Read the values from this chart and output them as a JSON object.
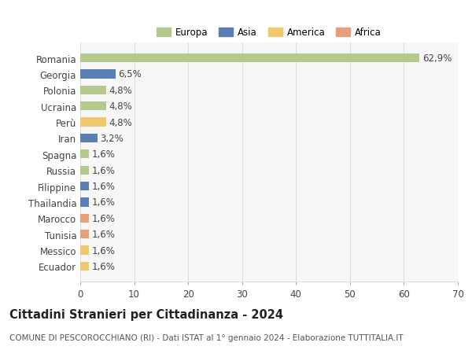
{
  "categories": [
    "Romania",
    "Georgia",
    "Polonia",
    "Ucraina",
    "Perù",
    "Iran",
    "Spagna",
    "Russia",
    "Filippine",
    "Thailandia",
    "Marocco",
    "Tunisia",
    "Messico",
    "Ecuador"
  ],
  "values": [
    62.9,
    6.5,
    4.8,
    4.8,
    4.8,
    3.2,
    1.6,
    1.6,
    1.6,
    1.6,
    1.6,
    1.6,
    1.6,
    1.6
  ],
  "labels": [
    "62,9%",
    "6,5%",
    "4,8%",
    "4,8%",
    "4,8%",
    "3,2%",
    "1,6%",
    "1,6%",
    "1,6%",
    "1,6%",
    "1,6%",
    "1,6%",
    "1,6%",
    "1,6%"
  ],
  "colors": [
    "#b5c98e",
    "#5b7eb5",
    "#b5c98e",
    "#b5c98e",
    "#f0c96e",
    "#5b7eb5",
    "#b5c98e",
    "#b5c98e",
    "#5b7eb5",
    "#5b7eb5",
    "#e8a07a",
    "#e8a07a",
    "#f0c96e",
    "#f0c96e"
  ],
  "legend_labels": [
    "Europa",
    "Asia",
    "America",
    "Africa"
  ],
  "legend_colors": [
    "#b5c98e",
    "#5b7eb5",
    "#f0c96e",
    "#e8a07a"
  ],
  "xlim": [
    0,
    70
  ],
  "xticks": [
    0,
    10,
    20,
    30,
    40,
    50,
    60,
    70
  ],
  "title": "Cittadini Stranieri per Cittadinanza - 2024",
  "subtitle": "COMUNE DI PESCOROCCHIANO (RI) - Dati ISTAT al 1° gennaio 2024 - Elaborazione TUTTITALIA.IT",
  "background_color": "#ffffff",
  "plot_bg_color": "#f7f7f7",
  "grid_color": "#dddddd",
  "bar_height": 0.55,
  "label_fontsize": 8.5,
  "tick_fontsize": 8.5,
  "title_fontsize": 10.5,
  "subtitle_fontsize": 7.5
}
